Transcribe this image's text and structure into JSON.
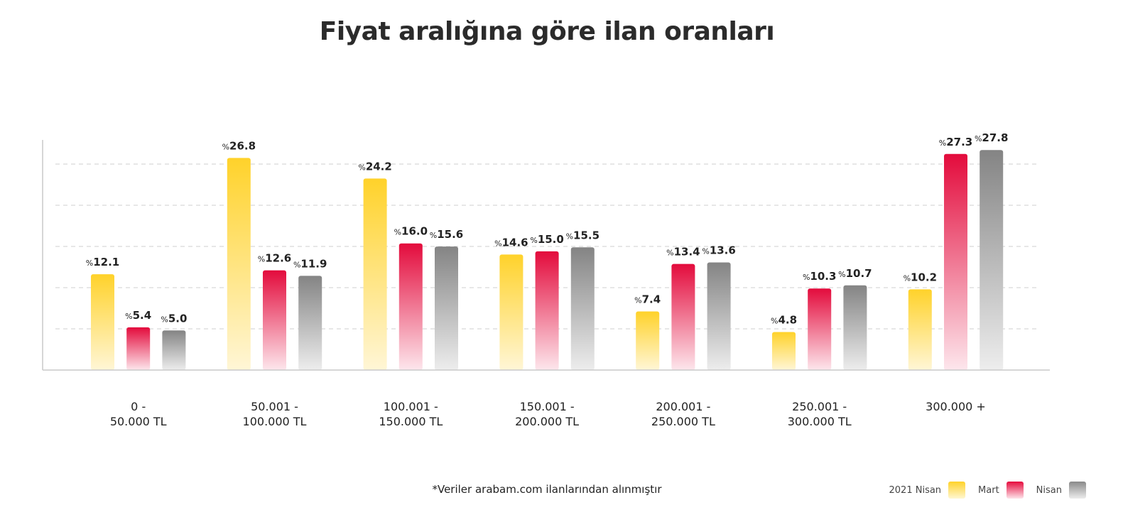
{
  "title": "Fiyat aralığına göre ilan oranları",
  "footnote": "*Veriler arabam.com ilanlarından alınmıştır",
  "colors": {
    "yellow_top": "#ffd22a",
    "yellow_bottom": "#fff6d6",
    "red_top": "#e30b3c",
    "red_bottom": "#fde6ec",
    "gray_top": "#848484",
    "gray_bottom": "#ededed",
    "axis": "#c9c9c9",
    "grid": "#cfcfcf",
    "text": "#222222"
  },
  "chart_data": {
    "type": "bar",
    "categories": [
      "0 -\n50.000 TL",
      "50.001 -\n100.000 TL",
      "100.001 -\n150.000 TL",
      "150.001 -\n200.000 TL",
      "200.001 -\n250.000 TL",
      "250.001 -\n300.000 TL",
      "300.000 +"
    ],
    "series": [
      {
        "name": "2021 Nisan",
        "color": "yellow",
        "values": [
          12.1,
          26.8,
          24.2,
          14.6,
          7.4,
          4.8,
          10.2
        ]
      },
      {
        "name": "Mart",
        "color": "red",
        "values": [
          5.4,
          12.6,
          16.0,
          15.0,
          13.4,
          10.3,
          27.3
        ]
      },
      {
        "name": "Nisan",
        "color": "gray",
        "values": [
          5.0,
          11.9,
          15.6,
          15.5,
          13.6,
          10.7,
          27.8
        ]
      }
    ],
    "value_prefix": "%",
    "ylim": [
      0,
      28
    ],
    "grid": true,
    "legend_position": "bottom-right"
  }
}
